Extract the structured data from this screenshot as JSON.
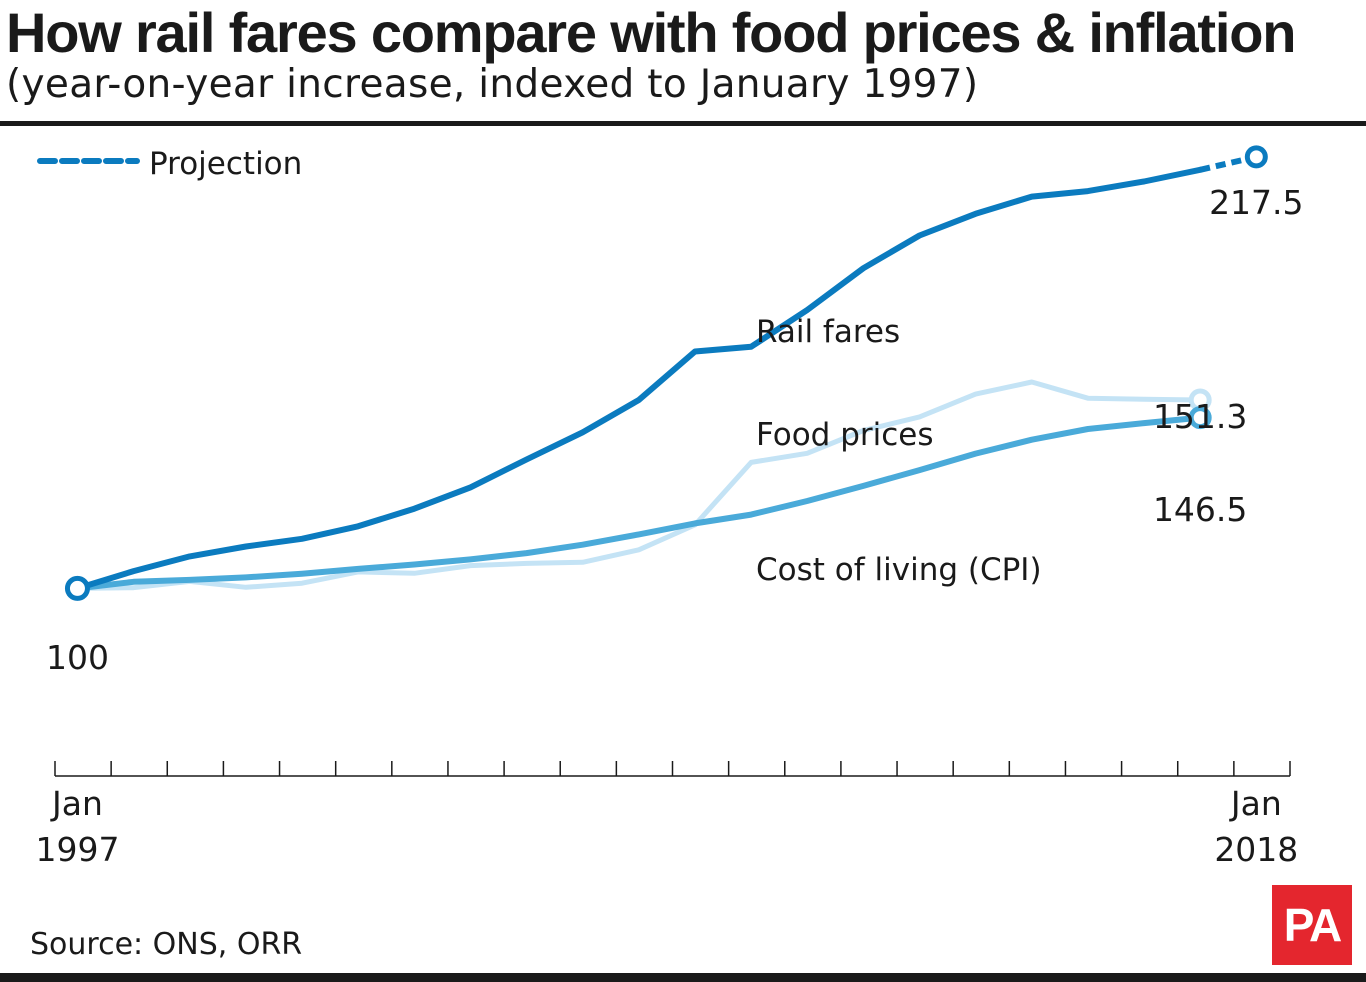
{
  "title": "How rail fares compare with food prices & inflation",
  "subtitle": "(year-on-year increase, indexed to January 1997)",
  "legend": {
    "label": "Projection",
    "style": "dashed"
  },
  "source": "Source: ONS, ORR",
  "logo": {
    "text": "PA",
    "color": "#e4262e"
  },
  "colors": {
    "rail": "#0b7bbf",
    "food": "#c4e3f5",
    "cpi": "#4aaad9",
    "axis": "#1a1a1a"
  },
  "chart_data": {
    "type": "line",
    "x": [
      1997,
      1998,
      1999,
      2000,
      2001,
      2002,
      2003,
      2004,
      2005,
      2006,
      2007,
      2008,
      2009,
      2010,
      2011,
      2012,
      2013,
      2014,
      2015,
      2016,
      2017,
      2018
    ],
    "xlim": [
      1996.6,
      2018.6
    ],
    "ylim": [
      50,
      230
    ],
    "xticks_count": 23,
    "xlabels": [
      {
        "x": 1997,
        "month": "Jan",
        "year": "1997"
      },
      {
        "x": 2018,
        "month": "Jan",
        "year": "2018"
      }
    ],
    "series": [
      {
        "key": "food",
        "name": "Food prices",
        "values": [
          100,
          100.2,
          101.9,
          100.3,
          101.4,
          104.5,
          104.1,
          106.2,
          106.8,
          107.1,
          110.5,
          117.3,
          134.3,
          136.8,
          143.0,
          146.7,
          152.9,
          156.2,
          151.8,
          151.5,
          151.3,
          null
        ],
        "end_label": "151.3",
        "label_text": "Food prices"
      },
      {
        "key": "cpi",
        "name": "Cost of living (CPI)",
        "values": [
          100,
          101.8,
          102.3,
          103.0,
          104.0,
          105.3,
          106.5,
          107.9,
          109.6,
          111.9,
          114.7,
          117.7,
          120.1,
          123.8,
          127.9,
          132.2,
          136.7,
          140.5,
          143.4,
          145.0,
          146.5,
          null
        ],
        "end_label": "146.5",
        "label_text": "Cost of living (CPI)"
      },
      {
        "key": "rail",
        "name": "Rail fares",
        "values": [
          100,
          104.7,
          108.7,
          111.4,
          113.5,
          116.9,
          121.7,
          127.5,
          135.1,
          142.5,
          151.3,
          164.5,
          165.8,
          175.8,
          187.2,
          196.1,
          202.0,
          206.7,
          208.2,
          210.8,
          214.0,
          217.5
        ],
        "projection_from_index": 20,
        "start_label": "100",
        "end_label": "217.5",
        "label_text": "Rail fares"
      }
    ]
  }
}
